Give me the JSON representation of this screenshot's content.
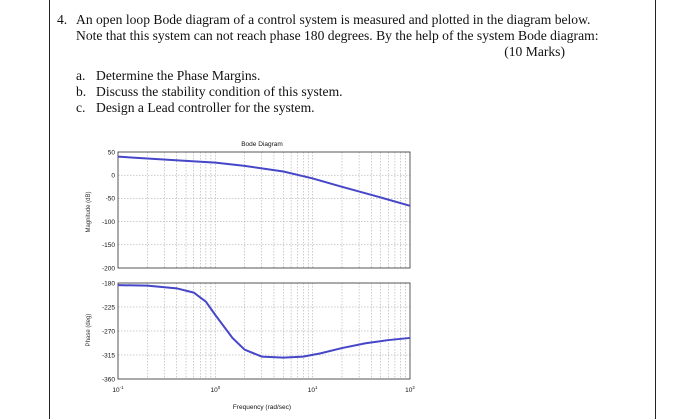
{
  "question": {
    "number": "4.",
    "line1": "An open loop Bode diagram of a control system is measured and plotted in the diagram below.",
    "line2": "Note that this system can not reach phase 180 degrees. By the help of the system Bode diagram:",
    "marks": "(10 Marks)",
    "items": [
      {
        "label": "a.",
        "text": "Determine the Phase Margins."
      },
      {
        "label": "b.",
        "text": "Discuss the stability condition of this system."
      },
      {
        "label": "c.",
        "text": "Design a Lead controller for the system."
      }
    ]
  },
  "chart_data": {
    "type": "line",
    "title": "Bode Diagram",
    "xlabel": "Frequency (rad/sec)",
    "x_scale": "log",
    "xlim": [
      0.1,
      100
    ],
    "x_ticks": [
      {
        "base": "10",
        "exp": "-1"
      },
      {
        "base": "10",
        "exp": "0"
      },
      {
        "base": "10",
        "exp": "1"
      },
      {
        "base": "10",
        "exp": "2"
      }
    ],
    "grid": true,
    "line_color": "#4646c8",
    "magnitude": {
      "ylabel": "Magnitude (dB)",
      "ylim": [
        -200,
        50
      ],
      "ytick_labels": [
        "50",
        "0",
        "-50",
        "-100",
        "-150",
        "-200"
      ],
      "ytick_values": [
        50,
        0,
        -50,
        -100,
        -150,
        -200
      ],
      "x": [
        0.1,
        0.2,
        0.5,
        1,
        2,
        5,
        10,
        20,
        50,
        100
      ],
      "y": [
        40,
        36,
        31,
        27,
        20,
        8,
        -7,
        -25,
        -48,
        -66
      ]
    },
    "phase": {
      "ylabel": "Phase (deg)",
      "ylim": [
        -360,
        -180
      ],
      "ytick_labels": [
        "-180",
        "-225",
        "-270",
        "-315",
        "-360"
      ],
      "ytick_values": [
        -180,
        -225,
        -270,
        -315,
        -360
      ],
      "x": [
        0.1,
        0.2,
        0.4,
        0.6,
        0.8,
        1,
        1.5,
        2,
        3,
        5,
        8,
        12,
        20,
        35,
        60,
        100
      ],
      "y": [
        -184,
        -185,
        -190,
        -198,
        -215,
        -240,
        -283,
        -305,
        -318,
        -320,
        -318,
        -312,
        -302,
        -293,
        -287,
        -283
      ]
    }
  }
}
